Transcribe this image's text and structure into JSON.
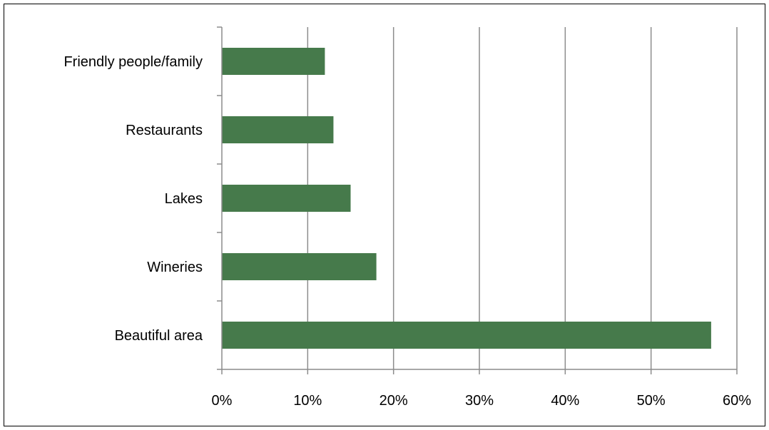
{
  "chart_data": {
    "type": "bar",
    "orientation": "horizontal",
    "categories": [
      "Friendly people/family",
      "Restaurants",
      "Lakes",
      "Wineries",
      "Beautiful area"
    ],
    "values": [
      0.12,
      0.13,
      0.15,
      0.18,
      0.57
    ],
    "xlim": [
      0,
      0.6
    ],
    "xticks": [
      "0%",
      "10%",
      "20%",
      "30%",
      "40%",
      "50%",
      "60%"
    ],
    "grid": "vertical",
    "legend": "none",
    "title": "",
    "xlabel": "",
    "ylabel": "",
    "colors": {
      "bar": "#467a4b",
      "grid": "#8c8c8c",
      "axis": "#8c8c8c"
    }
  }
}
